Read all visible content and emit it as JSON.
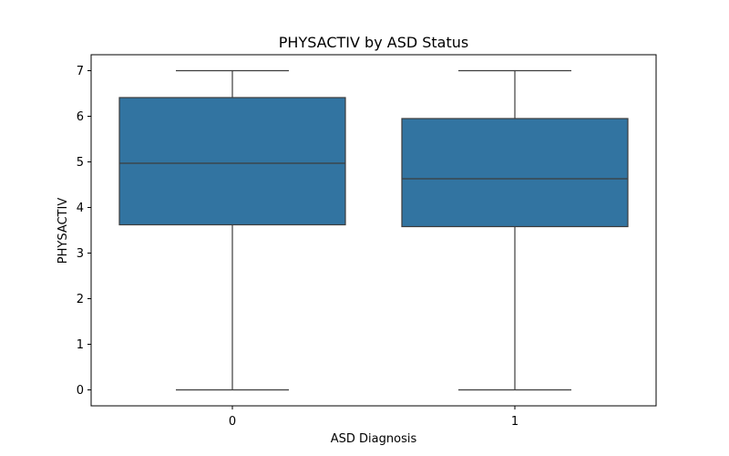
{
  "chart_data": {
    "type": "box",
    "title": "PHYSACTIV by ASD Status",
    "xlabel": "ASD Diagnosis",
    "ylabel": "PHYSACTIV",
    "categories": [
      "0",
      "1"
    ],
    "yticks": [
      0,
      1,
      2,
      3,
      4,
      5,
      6,
      7
    ],
    "ylim": [
      -0.35,
      7.35
    ],
    "boxes": [
      {
        "category": "0",
        "whisker_low": 0,
        "q1": 3.62,
        "median": 4.97,
        "q3": 6.41,
        "whisker_high": 7
      },
      {
        "category": "1",
        "whisker_low": 0,
        "q1": 3.58,
        "median": 4.63,
        "q3": 5.95,
        "whisker_high": 7
      }
    ],
    "box_color": "#3274a1",
    "line_color": "#3d3d3d",
    "grid": false,
    "legend": "none"
  }
}
